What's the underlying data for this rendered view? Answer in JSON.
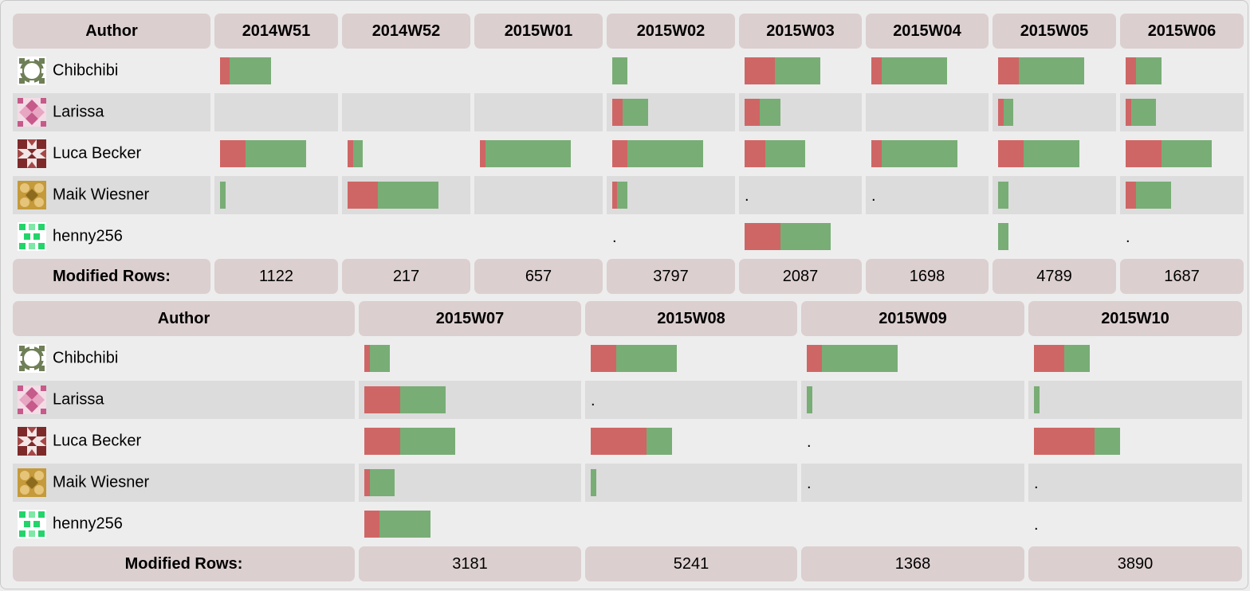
{
  "colors": {
    "removed": "#cf6666",
    "added": "#79ad76",
    "header_bg": "#dccfcf",
    "alt_row": "#dcdcdc"
  },
  "headers": {
    "author": "Author",
    "footer_label": "Modified Rows:"
  },
  "authors": [
    {
      "name": "Chibchibi",
      "icon": "avatar-chibchibi"
    },
    {
      "name": "Larissa",
      "icon": "avatar-larissa"
    },
    {
      "name": "Luca Becker",
      "icon": "avatar-luca-becker"
    },
    {
      "name": "Maik Wiesner",
      "icon": "avatar-maik-wiesner"
    },
    {
      "name": "henny256",
      "icon": "avatar-henny256"
    }
  ],
  "table1": {
    "weeks": [
      "2014W51",
      "2014W52",
      "2015W01",
      "2015W02",
      "2015W03",
      "2015W04",
      "2015W05",
      "2015W06"
    ],
    "modified_rows": [
      "1122",
      "217",
      "657",
      "3797",
      "2087",
      "1698",
      "4789",
      "1687"
    ],
    "cells": [
      [
        [
          12,
          52
        ],
        null,
        null,
        [
          0,
          19
        ],
        [
          38,
          57
        ],
        [
          13,
          82
        ],
        [
          26,
          82
        ],
        [
          13,
          32
        ]
      ],
      [
        null,
        null,
        null,
        [
          13,
          32
        ],
        [
          19,
          26
        ],
        null,
        [
          7,
          12
        ],
        [
          7,
          31
        ]
      ],
      [
        [
          32,
          76
        ],
        [
          7,
          12
        ],
        [
          7,
          107
        ],
        [
          19,
          95
        ],
        [
          26,
          50
        ],
        [
          13,
          95
        ],
        [
          32,
          70
        ],
        [
          45,
          63
        ]
      ],
      [
        [
          0,
          7
        ],
        [
          38,
          76
        ],
        null,
        [
          6,
          13
        ],
        ".",
        ".",
        [
          0,
          13
        ],
        [
          13,
          44
        ]
      ],
      [
        null,
        null,
        null,
        ".",
        [
          45,
          63
        ],
        null,
        [
          0,
          13
        ],
        "."
      ]
    ]
  },
  "table2": {
    "weeks": [
      "2015W07",
      "2015W08",
      "2015W09",
      "2015W10"
    ],
    "modified_rows": [
      "3181",
      "5241",
      "1368",
      "3890"
    ],
    "cells": [
      [
        [
          7,
          25
        ],
        [
          32,
          76
        ],
        [
          19,
          95
        ],
        [
          38,
          32
        ]
      ],
      [
        [
          45,
          57
        ],
        ".",
        [
          0,
          7
        ],
        [
          0,
          7
        ]
      ],
      [
        [
          45,
          69
        ],
        [
          70,
          32
        ],
        ".",
        [
          76,
          32
        ]
      ],
      [
        [
          7,
          31
        ],
        [
          0,
          7
        ],
        ".",
        "."
      ],
      [
        [
          19,
          64
        ],
        null,
        null,
        "."
      ]
    ]
  }
}
